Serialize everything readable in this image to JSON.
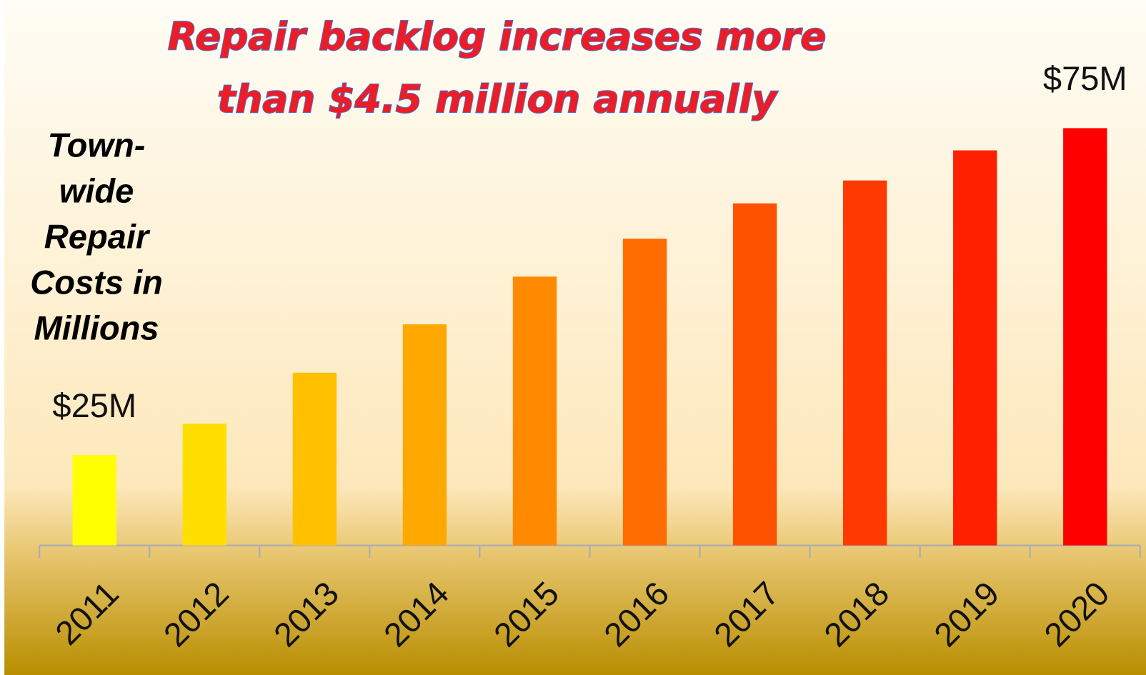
{
  "chart_data": {
    "type": "bar",
    "title": [
      "Repair backlog increases more",
      "than $4.5 million annually"
    ],
    "y_label": [
      "Town-",
      "wide",
      "Repair",
      "Costs in",
      "Millions"
    ],
    "categories": [
      "2011",
      "2012",
      "2013",
      "2014",
      "2015",
      "2016",
      "2017",
      "2018",
      "2019",
      "2020"
    ],
    "values": [
      25,
      29.8,
      37.6,
      45,
      52.3,
      58.1,
      63.5,
      67,
      71.6,
      75
    ],
    "value_labels": [
      "$25M",
      null,
      null,
      null,
      null,
      null,
      null,
      null,
      null,
      "$75M"
    ],
    "colors": [
      "#ffff00",
      "#ffdf00",
      "#ffc000",
      "#ffa800",
      "#ff8a00",
      "#ff6c00",
      "#ff5200",
      "#ff3a00",
      "#ff2000",
      "#ff0000"
    ],
    "ylim": [
      11.2,
      83.4
    ]
  }
}
